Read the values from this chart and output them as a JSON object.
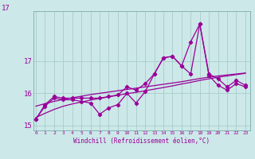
{
  "x": [
    0,
    1,
    2,
    3,
    4,
    5,
    6,
    7,
    8,
    9,
    10,
    11,
    12,
    13,
    14,
    15,
    16,
    17,
    18,
    19,
    20,
    21,
    22,
    23
  ],
  "y_zigzag": [
    15.2,
    15.6,
    15.85,
    15.8,
    15.8,
    15.75,
    15.7,
    15.35,
    15.55,
    15.65,
    16.0,
    15.7,
    16.05,
    16.6,
    17.1,
    17.15,
    16.85,
    16.6,
    18.15,
    16.55,
    16.25,
    16.1,
    16.3,
    16.2
  ],
  "y_upper": [
    15.2,
    15.65,
    15.9,
    15.85,
    15.85,
    15.85,
    15.85,
    15.85,
    15.9,
    15.95,
    16.2,
    16.1,
    16.3,
    16.6,
    17.1,
    17.15,
    16.85,
    17.6,
    18.15,
    16.6,
    16.45,
    16.2,
    16.4,
    16.25
  ],
  "y_trend1": [
    15.25,
    15.38,
    15.5,
    15.6,
    15.67,
    15.73,
    15.79,
    15.84,
    15.89,
    15.94,
    15.99,
    16.03,
    16.08,
    16.13,
    16.18,
    16.23,
    16.29,
    16.34,
    16.4,
    16.45,
    16.5,
    16.54,
    16.58,
    16.62
  ],
  "y_trend2": [
    15.6,
    15.68,
    15.75,
    15.81,
    15.86,
    15.91,
    15.96,
    16.0,
    16.04,
    16.08,
    16.12,
    16.16,
    16.2,
    16.24,
    16.28,
    16.32,
    16.36,
    16.41,
    16.46,
    16.5,
    16.54,
    16.57,
    16.6,
    16.63
  ],
  "color": "#990099",
  "bg_color": "#cce8e8",
  "grid_color": "#aacccc",
  "xlabel": "Windchill (Refroidissement éolien,°C)",
  "yticks": [
    15,
    16,
    17
  ],
  "ytop": 18.55,
  "ybot": 14.85,
  "xlim_left": -0.3,
  "xlim_right": 23.5,
  "marker": "D",
  "markersize": 2.2,
  "linewidth": 0.9
}
